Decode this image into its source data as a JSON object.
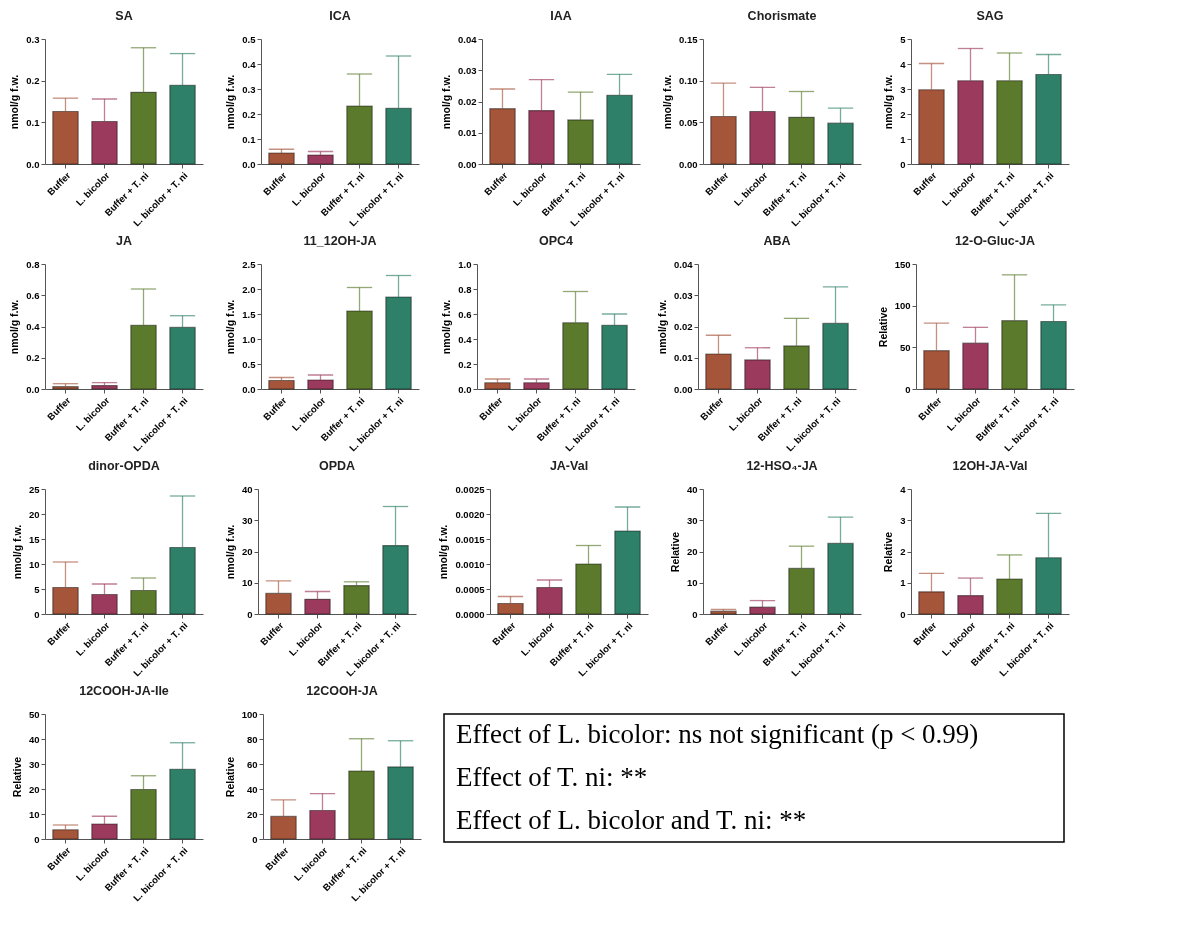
{
  "chart_data": [
    {
      "type": "bar",
      "title": "SA",
      "ylabel": "nmol/g f.w.",
      "categories": [
        "Buffer",
        "L. bicolor",
        "Buffer + T. ni",
        "L. bicolor + T. ni"
      ],
      "colors": [
        "#a5553a",
        "#9c3a5e",
        "#5b7a2c",
        "#2e8069"
      ],
      "values": [
        0.126,
        0.102,
        0.172,
        0.189
      ],
      "errors": [
        [
          0.126,
          0.158
        ],
        [
          0.102,
          0.156
        ],
        [
          0.172,
          0.279
        ],
        [
          0.189,
          0.265
        ]
      ],
      "ylim": [
        0,
        0.3
      ],
      "yticks": [
        {
          "value": 0,
          "label": "0.0"
        },
        0.1,
        0.2,
        0.3
      ]
    },
    {
      "type": "bar",
      "title": "ICA",
      "ylabel": "nmol/g f.w.",
      "categories": [
        "Buffer",
        "L. bicolor",
        "Buffer + T. ni",
        "L. bicolor + T. ni"
      ],
      "colors": [
        "#a5553a",
        "#9c3a5e",
        "#5b7a2c",
        "#2e8069"
      ],
      "values": [
        0.044,
        0.036,
        0.232,
        0.223
      ],
      "errors": [
        [
          0.044,
          0.059
        ],
        [
          0.036,
          0.05
        ],
        [
          0.232,
          0.36
        ],
        [
          0.223,
          0.432
        ]
      ],
      "ylim": [
        0,
        0.5
      ],
      "yticks": [
        {
          "value": 0,
          "label": "0.0"
        },
        0.1,
        0.2,
        0.3,
        0.4,
        0.5
      ]
    },
    {
      "type": "bar",
      "title": "IAA",
      "ylabel": "nmol/g f.w.",
      "categories": [
        "Buffer",
        "L. bicolor",
        "Buffer + T. ni",
        "L. bicolor + T. ni"
      ],
      "colors": [
        "#a5553a",
        "#9c3a5e",
        "#5b7a2c",
        "#2e8069"
      ],
      "values": [
        0.0177,
        0.0171,
        0.0141,
        0.022
      ],
      "errors": [
        [
          0.0177,
          0.024
        ],
        [
          0.0171,
          0.027
        ],
        [
          0.0141,
          0.023
        ],
        [
          0.022,
          0.0287
        ]
      ],
      "ylim": [
        0,
        0.04
      ],
      "yticks": [
        {
          "value": 0,
          "label": "0.00"
        },
        0.01,
        0.02,
        0.03,
        0.04
      ]
    },
    {
      "type": "bar",
      "title": "Chorismate",
      "ylabel": "nmol/g f.w.",
      "categories": [
        "Buffer",
        "L. bicolor",
        "Buffer + T. ni",
        "L. bicolor + T. ni"
      ],
      "colors": [
        "#a5553a",
        "#9c3a5e",
        "#5b7a2c",
        "#2e8069"
      ],
      "values": [
        0.057,
        0.063,
        0.056,
        0.049
      ],
      "errors": [
        [
          0.057,
          0.097
        ],
        [
          0.063,
          0.092
        ],
        [
          0.056,
          0.087
        ],
        [
          0.049,
          0.067
        ]
      ],
      "ylim": [
        0,
        0.15
      ],
      "yticks": [
        {
          "value": 0,
          "label": "0.00"
        },
        0.05,
        {
          "value": 0.1,
          "label": "0.10"
        },
        0.15
      ]
    },
    {
      "type": "bar",
      "title": "SAG",
      "ylabel": "nmol/g f.w.",
      "categories": [
        "Buffer",
        "L. bicolor",
        "Buffer + T. ni",
        "L. bicolor + T. ni"
      ],
      "colors": [
        "#a5553a",
        "#9c3a5e",
        "#5b7a2c",
        "#2e8069"
      ],
      "values": [
        2.97,
        3.33,
        3.33,
        3.58
      ],
      "errors": [
        [
          2.97,
          4.02
        ],
        [
          3.33,
          4.62
        ],
        [
          3.33,
          4.44
        ],
        [
          3.58,
          4.38
        ]
      ],
      "ylim": [
        0,
        5
      ],
      "yticks": [
        0,
        1,
        2,
        3,
        4,
        5
      ]
    },
    {
      "type": "bar",
      "title": "JA",
      "ylabel": "nmol/g f.w.",
      "categories": [
        "Buffer",
        "L. bicolor",
        "Buffer + T. ni",
        "L. bicolor + T. ni"
      ],
      "colors": [
        "#a5553a",
        "#9c3a5e",
        "#5b7a2c",
        "#2e8069"
      ],
      "values": [
        0.015,
        0.022,
        0.408,
        0.394
      ],
      "errors": [
        [
          0.015,
          0.034
        ],
        [
          0.022,
          0.041
        ],
        [
          0.408,
          0.64
        ],
        [
          0.394,
          0.469
        ]
      ],
      "ylim": [
        0,
        0.8
      ],
      "yticks": [
        {
          "value": 0,
          "label": "0.0"
        },
        0.2,
        0.4,
        0.6,
        0.8
      ]
    },
    {
      "type": "bar",
      "title": "11_12OH-JA",
      "ylabel": "nmol/g f.w.",
      "categories": [
        "Buffer",
        "L. bicolor",
        "Buffer + T. ni",
        "L. bicolor + T. ni"
      ],
      "colors": [
        "#a5553a",
        "#9c3a5e",
        "#5b7a2c",
        "#2e8069"
      ],
      "values": [
        0.17,
        0.18,
        1.56,
        1.84
      ],
      "errors": [
        [
          0.17,
          0.23
        ],
        [
          0.18,
          0.28
        ],
        [
          1.56,
          2.03
        ],
        [
          1.84,
          2.27
        ]
      ],
      "ylim": [
        0,
        2.5
      ],
      "yticks": [
        {
          "value": 0,
          "label": "0.0"
        },
        0.5,
        {
          "value": 1,
          "label": "1.0"
        },
        1.5,
        {
          "value": 2,
          "label": "2.0"
        },
        2.5
      ]
    },
    {
      "type": "bar",
      "title": "OPC4",
      "ylabel": "nmol/g f.w.",
      "categories": [
        "Buffer",
        "L. bicolor",
        "Buffer + T. ni",
        "L. bicolor + T. ni"
      ],
      "colors": [
        "#a5553a",
        "#9c3a5e",
        "#5b7a2c",
        "#2e8069"
      ],
      "values": [
        0.05,
        0.05,
        0.53,
        0.51
      ],
      "errors": [
        [
          0.05,
          0.08
        ],
        [
          0.05,
          0.08
        ],
        [
          0.53,
          0.78
        ],
        [
          0.51,
          0.6
        ]
      ],
      "ylim": [
        0,
        1
      ],
      "yticks": [
        {
          "value": 0,
          "label": "0.0"
        },
        0.2,
        0.4,
        0.6,
        0.8,
        {
          "value": 1,
          "label": "1.0"
        }
      ]
    },
    {
      "type": "bar",
      "title": "ABA",
      "ylabel": "nmol/g f.w.",
      "categories": [
        "Buffer",
        "L. bicolor",
        "Buffer + T. ni",
        "L. bicolor + T. ni"
      ],
      "colors": [
        "#a5553a",
        "#9c3a5e",
        "#5b7a2c",
        "#2e8069"
      ],
      "values": [
        0.0112,
        0.0093,
        0.0138,
        0.021
      ],
      "errors": [
        [
          0.0112,
          0.0172
        ],
        [
          0.0093,
          0.0132
        ],
        [
          0.0138,
          0.0226
        ],
        [
          0.021,
          0.0327
        ]
      ],
      "ylim": [
        0,
        0.04
      ],
      "yticks": [
        {
          "value": 0,
          "label": "0.00"
        },
        0.01,
        0.02,
        0.03,
        0.04
      ]
    },
    {
      "type": "bar",
      "title": "12-O-Gluc-JA",
      "ylabel": "Relative",
      "categories": [
        "Buffer",
        "L. bicolor",
        "Buffer + T. ni",
        "L. bicolor + T. ni"
      ],
      "colors": [
        "#a5553a",
        "#9c3a5e",
        "#5b7a2c",
        "#2e8069"
      ],
      "values": [
        46,
        55,
        82,
        81
      ],
      "errors": [
        [
          46,
          79
        ],
        [
          55,
          74
        ],
        [
          82,
          137
        ],
        [
          81,
          101
        ]
      ],
      "ylim": [
        0,
        150
      ],
      "yticks": [
        0,
        50,
        100,
        150
      ]
    },
    {
      "type": "bar",
      "title": "dinor-OPDA",
      "ylabel": "nmol/g f.w.",
      "categories": [
        "Buffer",
        "L. bicolor",
        "Buffer + T. ni",
        "L. bicolor + T. ni"
      ],
      "colors": [
        "#a5553a",
        "#9c3a5e",
        "#5b7a2c",
        "#2e8069"
      ],
      "values": [
        5.3,
        3.9,
        4.7,
        13.3
      ],
      "errors": [
        [
          5.3,
          10.4
        ],
        [
          3.9,
          6
        ],
        [
          4.7,
          7.2
        ],
        [
          13.3,
          23.6
        ]
      ],
      "ylim": [
        0,
        25
      ],
      "yticks": [
        0,
        5,
        10,
        15,
        20,
        25
      ]
    },
    {
      "type": "bar",
      "title": "OPDA",
      "ylabel": "nmol/g f.w.",
      "categories": [
        "Buffer",
        "L. bicolor",
        "Buffer + T. ni",
        "L. bicolor + T. ni"
      ],
      "colors": [
        "#a5553a",
        "#9c3a5e",
        "#5b7a2c",
        "#2e8069"
      ],
      "values": [
        6.6,
        4.7,
        9.1,
        21.9
      ],
      "errors": [
        [
          6.6,
          10.6
        ],
        [
          4.7,
          7.2
        ],
        [
          9.1,
          10.3
        ],
        [
          21.9,
          34.4
        ]
      ],
      "ylim": [
        0,
        40
      ],
      "yticks": [
        0,
        10,
        20,
        30,
        40
      ]
    },
    {
      "type": "bar",
      "title": "JA-Val",
      "ylabel": "nmol/g f.w.",
      "categories": [
        "Buffer",
        "L. bicolor",
        "Buffer + T. ni",
        "L. bicolor + T. ni"
      ],
      "colors": [
        "#a5553a",
        "#9c3a5e",
        "#5b7a2c",
        "#2e8069"
      ],
      "values": [
        0.00021,
        0.00053,
        0.001,
        0.00166
      ],
      "errors": [
        [
          0.00021,
          0.00035
        ],
        [
          0.00053,
          0.00068
        ],
        [
          0.001,
          0.00137
        ],
        [
          0.00166,
          0.00214
        ]
      ],
      "ylim": [
        0,
        0.0025
      ],
      "yticks": [
        {
          "value": 0,
          "label": "0.0000"
        },
        0.0005,
        {
          "value": 0.001,
          "label": "0.0010"
        },
        0.0015,
        {
          "value": 0.002,
          "label": "0.0020"
        },
        0.0025
      ]
    },
    {
      "type": "bar",
      "title": "12-HSO₄-JA",
      "ylabel": "Relative",
      "categories": [
        "Buffer",
        "L. bicolor",
        "Buffer + T. ni",
        "L. bicolor + T. ni"
      ],
      "colors": [
        "#a5553a",
        "#9c3a5e",
        "#5b7a2c",
        "#2e8069"
      ],
      "values": [
        0.9,
        2.2,
        14.6,
        22.6
      ],
      "errors": [
        [
          0.9,
          1.5
        ],
        [
          2.2,
          4.3
        ],
        [
          14.6,
          21.7
        ],
        [
          22.6,
          31
        ]
      ],
      "ylim": [
        0,
        40
      ],
      "yticks": [
        0,
        10,
        20,
        30,
        40
      ]
    },
    {
      "type": "bar",
      "title": "12OH-JA-Val",
      "ylabel": "Relative",
      "categories": [
        "Buffer",
        "L. bicolor",
        "Buffer + T. ni",
        "L. bicolor + T. ni"
      ],
      "colors": [
        "#a5553a",
        "#9c3a5e",
        "#5b7a2c",
        "#2e8069"
      ],
      "values": [
        0.71,
        0.59,
        1.12,
        1.8
      ],
      "errors": [
        [
          0.71,
          1.3
        ],
        [
          0.59,
          1.15
        ],
        [
          1.12,
          1.89
        ],
        [
          1.8,
          3.22
        ]
      ],
      "ylim": [
        0,
        4
      ],
      "yticks": [
        0,
        1,
        2,
        3,
        4
      ]
    },
    {
      "type": "bar",
      "title": "12COOH-JA-Ile",
      "ylabel": "Relative",
      "categories": [
        "Buffer",
        "L. bicolor",
        "Buffer + T. ni",
        "L. bicolor + T. ni"
      ],
      "colors": [
        "#a5553a",
        "#9c3a5e",
        "#5b7a2c",
        "#2e8069"
      ],
      "values": [
        3.7,
        6,
        19.8,
        27.9
      ],
      "errors": [
        [
          3.7,
          5.6
        ],
        [
          6,
          9.1
        ],
        [
          19.8,
          25.3
        ],
        [
          27.9,
          38.5
        ]
      ],
      "ylim": [
        0,
        50
      ],
      "yticks": [
        0,
        10,
        20,
        30,
        40,
        50
      ]
    },
    {
      "type": "bar",
      "title": "12COOH-JA",
      "ylabel": "Relative",
      "categories": [
        "Buffer",
        "L. bicolor",
        "Buffer + T. ni",
        "L. bicolor + T. ni"
      ],
      "colors": [
        "#a5553a",
        "#9c3a5e",
        "#5b7a2c",
        "#2e8069"
      ],
      "values": [
        18.1,
        22.8,
        54.4,
        57.7
      ],
      "errors": [
        [
          18.1,
          31.3
        ],
        [
          22.8,
          36.3
        ],
        [
          54.4,
          80.2
        ],
        [
          57.7,
          78.6
        ]
      ],
      "ylim": [
        0,
        100
      ],
      "yticks": [
        0,
        20,
        40,
        60,
        80,
        100
      ]
    },
    {
      "type": "other",
      "annotations": [
        "Effect of L. bicolor: ns not significant (p < 0.99)",
        "Effect of T. ni: **",
        "Effect of L. bicolor and T. ni: **"
      ]
    }
  ]
}
